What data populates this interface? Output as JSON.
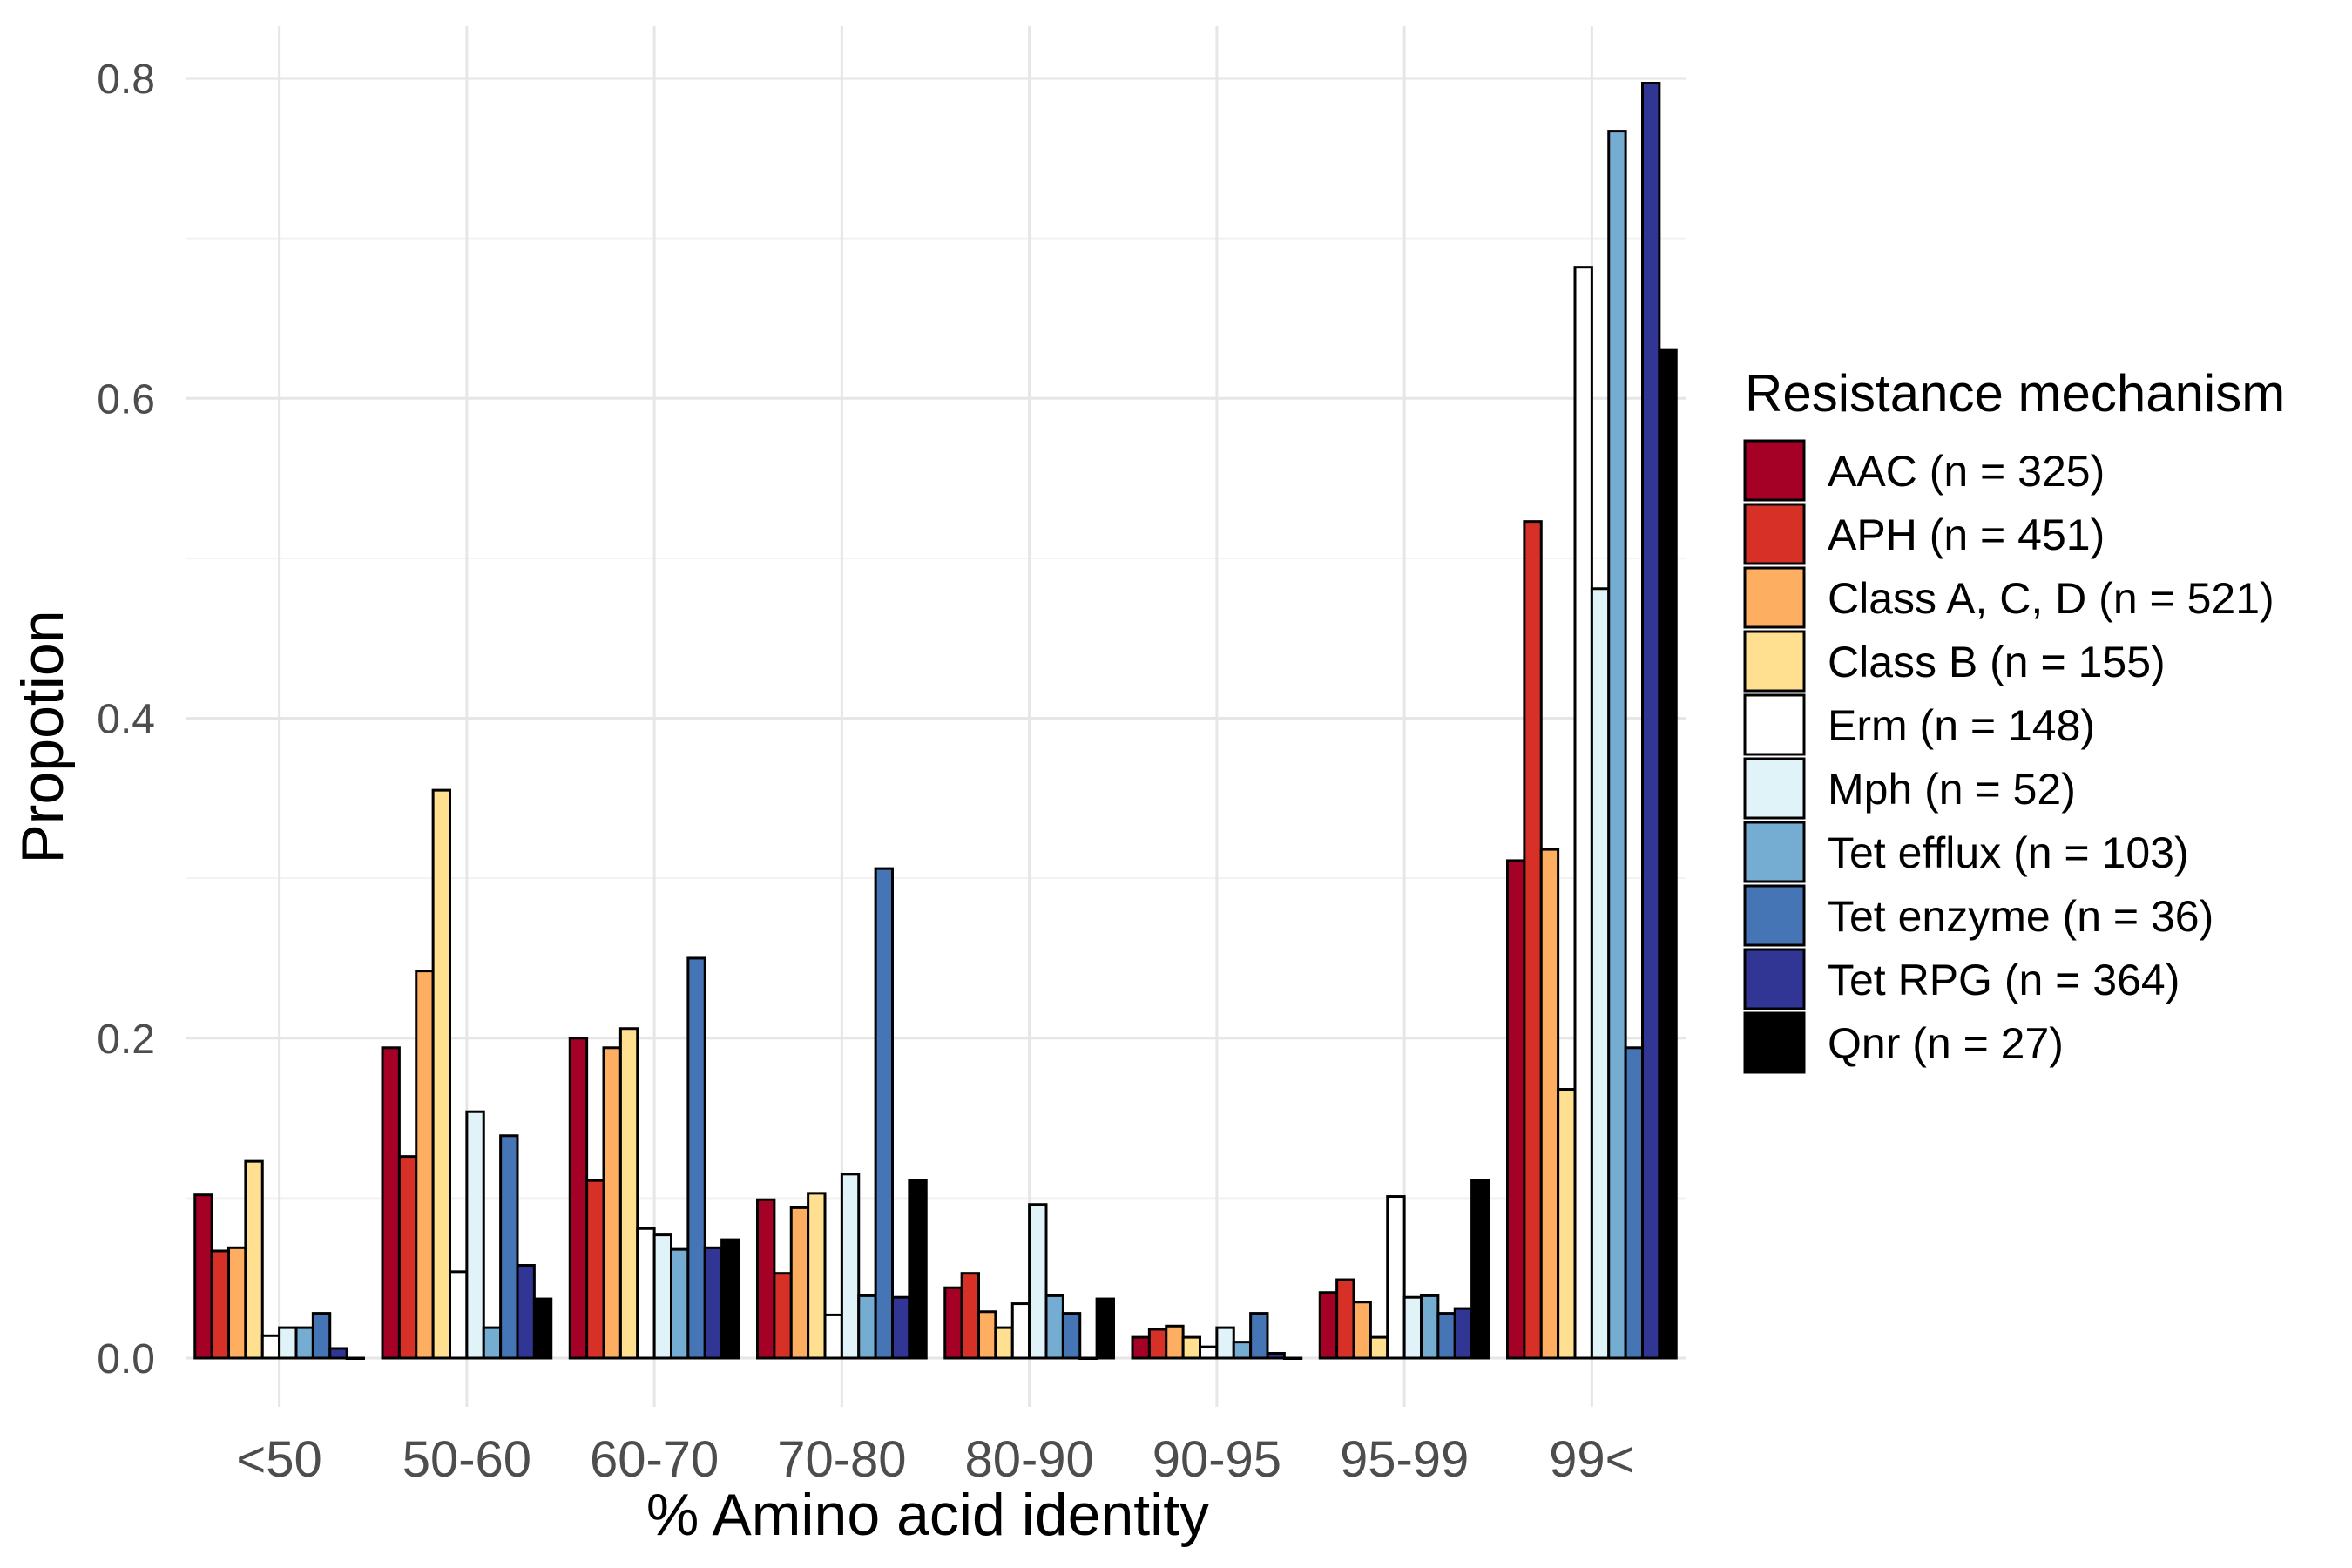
{
  "chart_data": {
    "type": "bar",
    "title": "",
    "xlabel": "% Amino acid identity",
    "ylabel": "Propotion",
    "ylim": [
      0,
      0.8
    ],
    "yticks": [
      "0.0",
      "0.2",
      "0.4",
      "0.6",
      "0.8"
    ],
    "grid": true,
    "legend_title": "Resistance mechanism",
    "legend_position": "right",
    "categories": [
      "<50",
      "50-60",
      "60-70",
      "70-80",
      "80-90",
      "90-95",
      "95-99",
      "99<"
    ],
    "series": [
      {
        "name": "AAC (n = 325)",
        "color": "#a50026",
        "values": [
          0.102,
          0.194,
          0.2,
          0.099,
          0.044,
          0.013,
          0.041,
          0.311
        ]
      },
      {
        "name": "APH (n = 451)",
        "color": "#d73027",
        "values": [
          0.067,
          0.126,
          0.111,
          0.053,
          0.053,
          0.018,
          0.049,
          0.523
        ]
      },
      {
        "name": "Class A, C, D (n = 521)",
        "color": "#fdae61",
        "values": [
          0.069,
          0.242,
          0.194,
          0.094,
          0.029,
          0.02,
          0.035,
          0.318
        ]
      },
      {
        "name": "Class B (n = 155)",
        "color": "#fee090",
        "values": [
          0.123,
          0.355,
          0.206,
          0.103,
          0.019,
          0.013,
          0.013,
          0.168
        ]
      },
      {
        "name": "Erm (n = 148)",
        "color": "#ffffff",
        "values": [
          0.014,
          0.054,
          0.081,
          0.027,
          0.034,
          0.007,
          0.101,
          0.682
        ]
      },
      {
        "name": "Mph (n = 52)",
        "color": "#e0f3f8",
        "values": [
          0.019,
          0.154,
          0.077,
          0.115,
          0.096,
          0.019,
          0.038,
          0.481
        ]
      },
      {
        "name": "Tet efflux (n = 103)",
        "color": "#74add1",
        "values": [
          0.019,
          0.019,
          0.068,
          0.039,
          0.039,
          0.01,
          0.039,
          0.767
        ]
      },
      {
        "name": "Tet enzyme (n = 36)",
        "color": "#4575b4",
        "values": [
          0.028,
          0.139,
          0.25,
          0.306,
          0.028,
          0.028,
          0.028,
          0.194
        ]
      },
      {
        "name": "Tet RPG (n = 364)",
        "color": "#313695",
        "values": [
          0.006,
          0.058,
          0.069,
          0.038,
          0.0,
          0.003,
          0.031,
          0.797
        ]
      },
      {
        "name": "Qnr (n = 27)",
        "color": "#000000",
        "values": [
          0.0,
          0.037,
          0.074,
          0.111,
          0.037,
          0.0,
          0.111,
          0.63
        ]
      }
    ]
  }
}
